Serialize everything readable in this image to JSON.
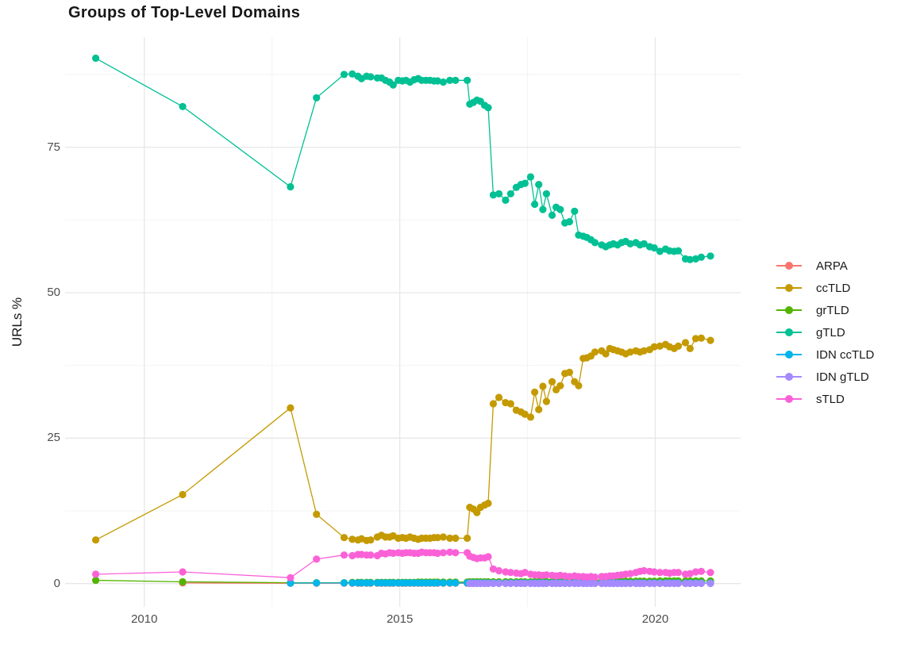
{
  "chart_data": {
    "type": "line",
    "title": "Groups of Top-Level Domains",
    "xlabel": "",
    "ylabel": "URLs %",
    "x_ticks": [
      2010,
      2015,
      2020
    ],
    "y_ticks": [
      0,
      25,
      50,
      75
    ],
    "x_minor": [
      2012.5,
      2017.5
    ],
    "y_minor": [
      12.5,
      37.5,
      62.5,
      87.5
    ],
    "xlim": [
      2008.45,
      2021.67
    ],
    "ylim": [
      -4,
      93.9
    ],
    "grid": true,
    "legend_position": "right",
    "x": [
      2009.05,
      2010.75,
      2012.86,
      2013.37,
      2013.91,
      2014.07,
      2014.18,
      2014.25,
      2014.35,
      2014.43,
      2014.56,
      2014.64,
      2014.72,
      2014.8,
      2014.87,
      2014.97,
      2015.05,
      2015.12,
      2015.2,
      2015.28,
      2015.36,
      2015.43,
      2015.51,
      2015.59,
      2015.67,
      2015.74,
      2015.85,
      2015.98,
      2016.09,
      2016.32,
      2016.37,
      2016.44,
      2016.51,
      2016.58,
      2016.66,
      2016.73,
      2016.83,
      2016.94,
      2017.07,
      2017.17,
      2017.28,
      2017.37,
      2017.45,
      2017.56,
      2017.64,
      2017.72,
      2017.8,
      2017.87,
      2017.98,
      2018.06,
      2018.14,
      2018.23,
      2018.32,
      2018.42,
      2018.5,
      2018.59,
      2018.66,
      2018.74,
      2018.82,
      2018.95,
      2019.03,
      2019.11,
      2019.18,
      2019.26,
      2019.34,
      2019.42,
      2019.51,
      2019.62,
      2019.7,
      2019.78,
      2019.89,
      2019.98,
      2020.09,
      2020.2,
      2020.28,
      2020.37,
      2020.45,
      2020.59,
      2020.68,
      2020.79,
      2020.9,
      2021.08
    ],
    "series": [
      {
        "name": "ARPA",
        "color": "#F8766D",
        "values": [
          null,
          0.1,
          0.05,
          0.05,
          0.05,
          0.05,
          0.05,
          0.05,
          0.05,
          0.05,
          0.05,
          0.05,
          0.05,
          0.05,
          0.05,
          0.05,
          0.05,
          0.05,
          0.05,
          0.05,
          0.05,
          0.05,
          0.05,
          0.05,
          0.05,
          0.05,
          0.05,
          0.05,
          0.05,
          0.05,
          0.05,
          0.05,
          0.05,
          0.05,
          0.05,
          0.05,
          0.05,
          0.05,
          0.05,
          0.05,
          0.05,
          0.05,
          0.05,
          0.05,
          0.05,
          0.05,
          0.05,
          0.05,
          0.05,
          0.05,
          0.05,
          0.05,
          0.05,
          0.05,
          0.05,
          0.05,
          0.05,
          0.05,
          0.05,
          0.05,
          0.05,
          0.05,
          0.05,
          0.05,
          0.05,
          0.05,
          0.05,
          0.05,
          0.05,
          0.05,
          0.05,
          0.05,
          0.05,
          0.05,
          0.05,
          0.05,
          0.05,
          0.05,
          0.05,
          0.05,
          0.05,
          0.05
        ]
      },
      {
        "name": "ccTLD",
        "color": "#C49A00",
        "values": [
          7.5,
          15.3,
          30.2,
          11.9,
          7.9,
          7.6,
          7.5,
          7.7,
          7.4,
          7.5,
          8.0,
          8.3,
          8.0,
          8.0,
          8.2,
          7.8,
          7.9,
          7.8,
          8.0,
          7.8,
          7.6,
          7.8,
          7.8,
          7.8,
          7.9,
          7.9,
          8.0,
          7.8,
          7.8,
          7.8,
          13.1,
          12.8,
          12.2,
          13.1,
          13.5,
          13.8,
          30.9,
          32.0,
          31.1,
          30.9,
          29.8,
          29.5,
          29.1,
          28.6,
          32.9,
          29.9,
          33.9,
          31.3,
          34.7,
          33.3,
          34.0,
          36.1,
          36.3,
          34.7,
          34.0,
          38.7,
          38.8,
          39.1,
          39.8,
          40.0,
          39.5,
          40.4,
          40.2,
          40.0,
          39.8,
          39.5,
          39.8,
          40.0,
          39.8,
          40.0,
          40.2,
          40.7,
          40.8,
          41.1,
          40.7,
          40.4,
          40.8,
          41.4,
          40.4,
          42.1,
          42.2,
          41.8
        ]
      },
      {
        "name": "grTLD",
        "color": "#53B400",
        "values": [
          0.55,
          0.3,
          0.15,
          0.15,
          0.15,
          0.2,
          0.2,
          0.2,
          0.2,
          0.2,
          0.2,
          0.2,
          0.2,
          0.2,
          0.2,
          0.2,
          0.2,
          0.2,
          0.2,
          0.2,
          0.25,
          0.25,
          0.25,
          0.25,
          0.25,
          0.25,
          0.25,
          0.25,
          0.25,
          0.25,
          0.3,
          0.3,
          0.3,
          0.3,
          0.3,
          0.3,
          0.3,
          0.3,
          0.3,
          0.3,
          0.3,
          0.3,
          0.3,
          0.3,
          0.3,
          0.35,
          0.35,
          0.35,
          0.35,
          0.35,
          0.35,
          0.35,
          0.35,
          0.35,
          0.35,
          0.35,
          0.35,
          0.35,
          0.35,
          0.35,
          0.4,
          0.4,
          0.4,
          0.4,
          0.4,
          0.4,
          0.4,
          0.4,
          0.4,
          0.4,
          0.4,
          0.4,
          0.45,
          0.45,
          0.45,
          0.45,
          0.45,
          0.45,
          0.45,
          0.45,
          0.45,
          0.45
        ]
      },
      {
        "name": "gTLD",
        "color": "#00C094",
        "values": [
          90.3,
          82.0,
          68.2,
          83.5,
          87.5,
          87.6,
          87.2,
          86.8,
          87.2,
          87.1,
          86.9,
          86.9,
          86.5,
          86.2,
          85.7,
          86.5,
          86.4,
          86.5,
          86.2,
          86.6,
          86.8,
          86.5,
          86.5,
          86.5,
          86.4,
          86.4,
          86.2,
          86.5,
          86.5,
          86.5,
          82.4,
          82.7,
          83.1,
          82.9,
          82.2,
          81.8,
          66.8,
          67.0,
          65.9,
          67.0,
          68.1,
          68.6,
          68.8,
          69.9,
          65.2,
          68.6,
          64.3,
          67.0,
          63.3,
          64.7,
          64.3,
          62.0,
          62.2,
          64.0,
          59.9,
          59.7,
          59.5,
          59.1,
          58.6,
          58.2,
          57.9,
          58.2,
          58.4,
          58.2,
          58.6,
          58.8,
          58.4,
          58.6,
          58.2,
          58.4,
          57.9,
          57.7,
          57.1,
          57.5,
          57.2,
          57.1,
          57.2,
          55.8,
          55.7,
          55.8,
          56.1,
          56.3
        ]
      },
      {
        "name": "IDN ccTLD",
        "color": "#00B6EB",
        "values": [
          null,
          null,
          0.08,
          0.1,
          0.1,
          0.1,
          0.1,
          0.1,
          0.1,
          0.1,
          0.1,
          0.1,
          0.1,
          0.1,
          0.1,
          0.1,
          0.1,
          0.1,
          0.1,
          0.1,
          0.1,
          0.1,
          0.1,
          0.1,
          0.1,
          0.1,
          0.1,
          0.1,
          0.1,
          0.1,
          0.1,
          0.1,
          0.1,
          0.1,
          0.1,
          0.1,
          0.1,
          0.1,
          0.1,
          0.1,
          0.1,
          0.1,
          0.1,
          0.1,
          0.1,
          0.1,
          0.1,
          0.1,
          0.1,
          0.1,
          0.1,
          0.1,
          0.1,
          0.1,
          0.1,
          0.1,
          0.1,
          0.1,
          0.1,
          0.1,
          0.1,
          0.1,
          0.1,
          0.1,
          0.1,
          0.1,
          0.1,
          0.1,
          0.1,
          0.1,
          0.1,
          0.1,
          0.1,
          0.1,
          0.1,
          0.1,
          0.1,
          0.1,
          0.1,
          0.1,
          0.1,
          0.1
        ]
      },
      {
        "name": "IDN gTLD",
        "color": "#A58AFF",
        "values": [
          null,
          null,
          null,
          null,
          null,
          null,
          null,
          null,
          null,
          null,
          null,
          null,
          null,
          null,
          null,
          null,
          null,
          null,
          null,
          null,
          null,
          null,
          null,
          null,
          null,
          null,
          null,
          null,
          null,
          null,
          0.02,
          0.02,
          0.02,
          0.02,
          0.02,
          0.02,
          0.02,
          0.02,
          0.02,
          0.02,
          0.02,
          0.02,
          0.02,
          0.02,
          0.02,
          0.02,
          0.02,
          0.02,
          0.02,
          0.02,
          0.02,
          0.02,
          0.02,
          0.02,
          0.02,
          0.02,
          0.02,
          0.02,
          0.02,
          0.02,
          0.02,
          0.02,
          0.02,
          0.02,
          0.02,
          0.02,
          0.02,
          0.02,
          0.02,
          0.02,
          0.02,
          0.02,
          0.02,
          0.02,
          0.02,
          0.02,
          0.02,
          0.02,
          0.02,
          0.02,
          0.02,
          0.02
        ]
      },
      {
        "name": "sTLD",
        "color": "#FB61D7",
        "values": [
          1.6,
          2.0,
          1.0,
          4.2,
          4.9,
          4.8,
          5.0,
          5.0,
          4.9,
          4.9,
          4.8,
          5.2,
          5.1,
          5.3,
          5.2,
          5.3,
          5.2,
          5.3,
          5.3,
          5.2,
          5.2,
          5.4,
          5.3,
          5.3,
          5.3,
          5.2,
          5.3,
          5.4,
          5.3,
          5.3,
          4.7,
          4.5,
          4.3,
          4.4,
          4.4,
          4.6,
          2.5,
          2.2,
          2.0,
          1.9,
          1.8,
          1.7,
          1.9,
          1.6,
          1.5,
          1.5,
          1.4,
          1.5,
          1.4,
          1.3,
          1.4,
          1.3,
          1.2,
          1.3,
          1.2,
          1.2,
          1.1,
          1.2,
          1.1,
          1.2,
          1.2,
          1.3,
          1.3,
          1.4,
          1.5,
          1.6,
          1.7,
          1.9,
          2.1,
          2.2,
          2.1,
          2.0,
          1.9,
          1.9,
          1.8,
          1.9,
          1.9,
          1.6,
          1.7,
          2.0,
          2.1,
          1.9
        ]
      }
    ]
  }
}
